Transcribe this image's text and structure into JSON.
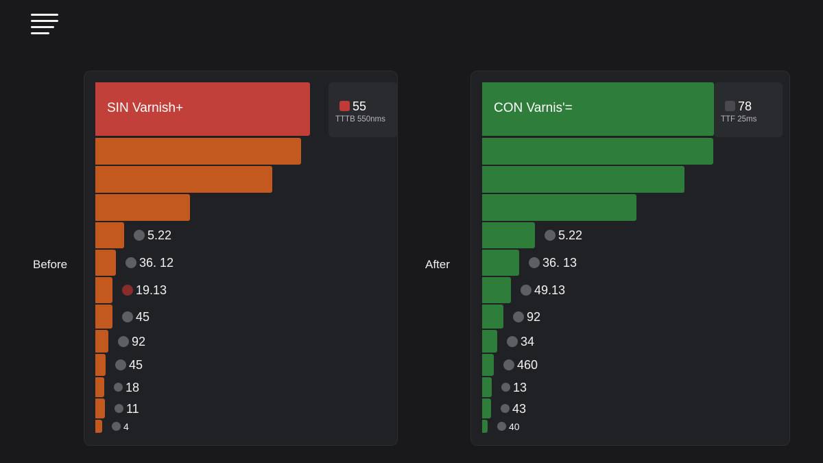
{
  "labels": {
    "before": "Before",
    "after": "After"
  },
  "colors": {
    "before_title_bar": "#c2403a",
    "before_bar": "#c4591f",
    "before_swatch": "#c23a38",
    "before_marker_highlight": "#8a2c2c",
    "after_bar": "#2e7d3a",
    "after_swatch": "#4a4a4e",
    "marker": "#5e5f63"
  },
  "chart_data": [
    {
      "type": "bar",
      "orientation": "horizontal",
      "title": "SIN Varnish+",
      "legend": {
        "value": "55",
        "label": "TTTB 550nms"
      },
      "value_labels": [
        "5.22",
        "36. 12",
        "19.13",
        "45",
        "92",
        "45",
        "18",
        "11",
        "4"
      ],
      "bar_lengths_relative": [
        1.0,
        0.96,
        0.823,
        0.441,
        0.135,
        0.096,
        0.08,
        0.08,
        0.061,
        0.048,
        0.041,
        0.045,
        0.032
      ],
      "highlight_index": 2
    },
    {
      "type": "bar",
      "orientation": "horizontal",
      "title": "CON Varnis'=",
      "legend": {
        "value": "78",
        "label": "TTF 25ms"
      },
      "value_labels": [
        "5.22",
        "36. 13",
        "49.13",
        "92",
        "34",
        "460",
        "13",
        "43",
        "40"
      ],
      "bar_lengths_relative": [
        1.0,
        0.997,
        0.873,
        0.665,
        0.228,
        0.16,
        0.125,
        0.092,
        0.065,
        0.05,
        0.041,
        0.038,
        0.024
      ],
      "highlight_index": -1
    }
  ]
}
